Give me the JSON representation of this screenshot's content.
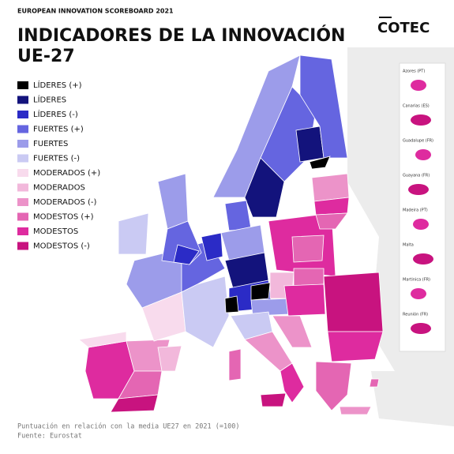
{
  "header": {
    "kicker": "EUROPEAN INNOVATION SCOREBOARD 2021",
    "title_line1": "INDICADORES DE LA INNOVACIÓN",
    "title_line2": "UE-27",
    "logo": "COTEC"
  },
  "legend": [
    {
      "label": "LÍDERES (+)",
      "color": "#000000"
    },
    {
      "label": "LÍDERES",
      "color": "#13137c"
    },
    {
      "label": "LÍDERES (-)",
      "color": "#2b2bc6"
    },
    {
      "label": "FUERTES (+)",
      "color": "#6565e0"
    },
    {
      "label": "FUERTES",
      "color": "#9c9cea"
    },
    {
      "label": "FUERTES (-)",
      "color": "#cacaf3"
    },
    {
      "label": "MODERADOS (+)",
      "color": "#f8dbed"
    },
    {
      "label": "MODERADOS",
      "color": "#f2b8db"
    },
    {
      "label": "MODERADOS (-)",
      "color": "#ec93c9"
    },
    {
      "label": "MODESTOS (+)",
      "color": "#e466b3"
    },
    {
      "label": "MODESTOS",
      "color": "#de2b9f"
    },
    {
      "label": "MODESTOS (-)",
      "color": "#c8137f"
    }
  ],
  "insets": [
    "Azores (PT)",
    "Canarias (ES)",
    "Guadalupe (FR)",
    "Guayana (FR)",
    "Madeira (PT)",
    "Malta",
    "Martinica (FR)",
    "Reunión (FR)"
  ],
  "footer": {
    "note": "Puntuación en relación con la media UE27 en 2021 (=100)",
    "source": "Fuente: Eurostat"
  }
}
